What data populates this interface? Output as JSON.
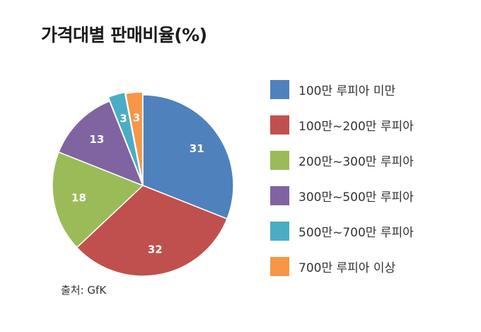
{
  "title": "가격대별 판매비율(%)",
  "source": "출처: GfK",
  "chart_data": {
    "type": "pie",
    "title": "가격대별 판매비율(%)",
    "categories": [
      "100만 루피아 미만",
      "100만~200만 루피아",
      "200만~300만 루피아",
      "300만~500만 루피아",
      "500만~700만 루피아",
      "700만 루피아 이상"
    ],
    "values": [
      31,
      32,
      18,
      13,
      3,
      3
    ],
    "value_labels": [
      "31",
      "32",
      "18",
      "13",
      "3",
      "3"
    ],
    "colors": [
      "#4f81bd",
      "#c0504d",
      "#9bbb59",
      "#8064a2",
      "#4bacc6",
      "#f79646"
    ],
    "legend_position": "right"
  }
}
